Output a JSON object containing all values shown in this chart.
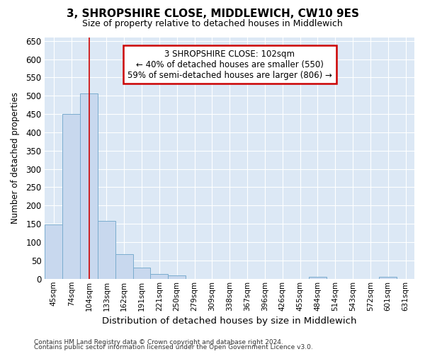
{
  "title": "3, SHROPSHIRE CLOSE, MIDDLEWICH, CW10 9ES",
  "subtitle": "Size of property relative to detached houses in Middlewich",
  "xlabel": "Distribution of detached houses by size in Middlewich",
  "ylabel": "Number of detached properties",
  "categories": [
    "45sqm",
    "74sqm",
    "104sqm",
    "133sqm",
    "162sqm",
    "191sqm",
    "221sqm",
    "250sqm",
    "279sqm",
    "309sqm",
    "338sqm",
    "367sqm",
    "396sqm",
    "426sqm",
    "455sqm",
    "484sqm",
    "514sqm",
    "543sqm",
    "572sqm",
    "601sqm",
    "631sqm"
  ],
  "values": [
    148,
    450,
    507,
    158,
    68,
    30,
    13,
    10,
    0,
    0,
    0,
    0,
    0,
    0,
    0,
    5,
    0,
    0,
    0,
    5,
    0
  ],
  "bar_color": "#c8d8ee",
  "bar_edge_color": "#7aacce",
  "vline_x": 2,
  "vline_color": "#cc0000",
  "annotation_text": "3 SHROPSHIRE CLOSE: 102sqm\n← 40% of detached houses are smaller (550)\n59% of semi-detached houses are larger (806) →",
  "annotation_box_color": "#ffffff",
  "annotation_box_edgecolor": "#cc0000",
  "ylim": [
    0,
    660
  ],
  "yticks": [
    0,
    50,
    100,
    150,
    200,
    250,
    300,
    350,
    400,
    450,
    500,
    550,
    600,
    650
  ],
  "bg_color": "#dce8f5",
  "grid_color": "#ffffff",
  "fig_bg_color": "#ffffff",
  "footer_line1": "Contains HM Land Registry data © Crown copyright and database right 2024.",
  "footer_line2": "Contains public sector information licensed under the Open Government Licence v3.0."
}
